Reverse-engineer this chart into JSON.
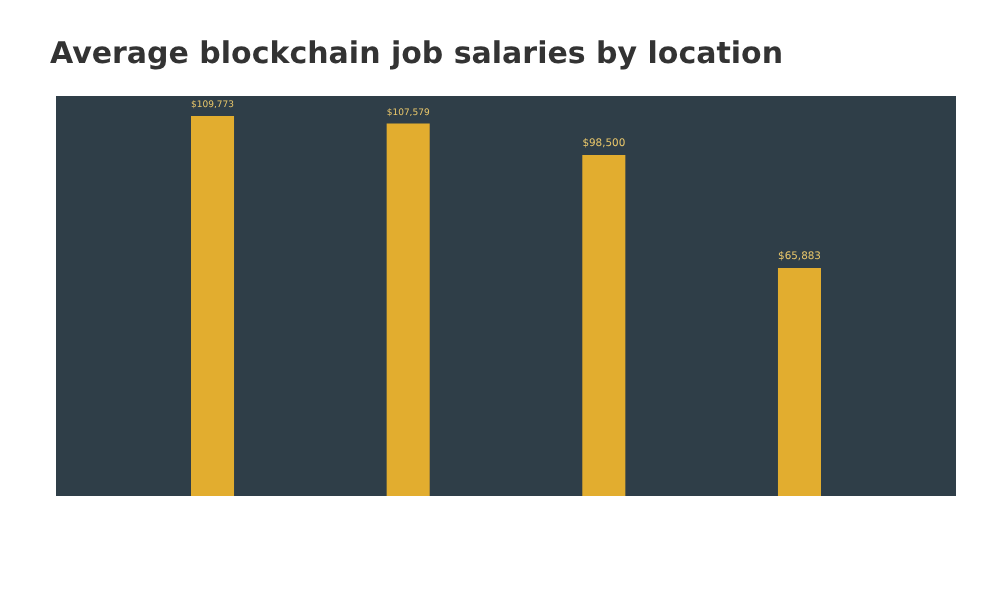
{
  "chart_data": {
    "type": "bar",
    "title": "Average blockchain job salaries by location",
    "categories": [
      null,
      null,
      null,
      null
    ],
    "values": [
      109773,
      107579,
      98500,
      65883
    ],
    "value_labels": [
      "$109,773",
      "$107,579",
      "$98,500",
      "$65,883"
    ],
    "color": "#e2ad2f"
  }
}
